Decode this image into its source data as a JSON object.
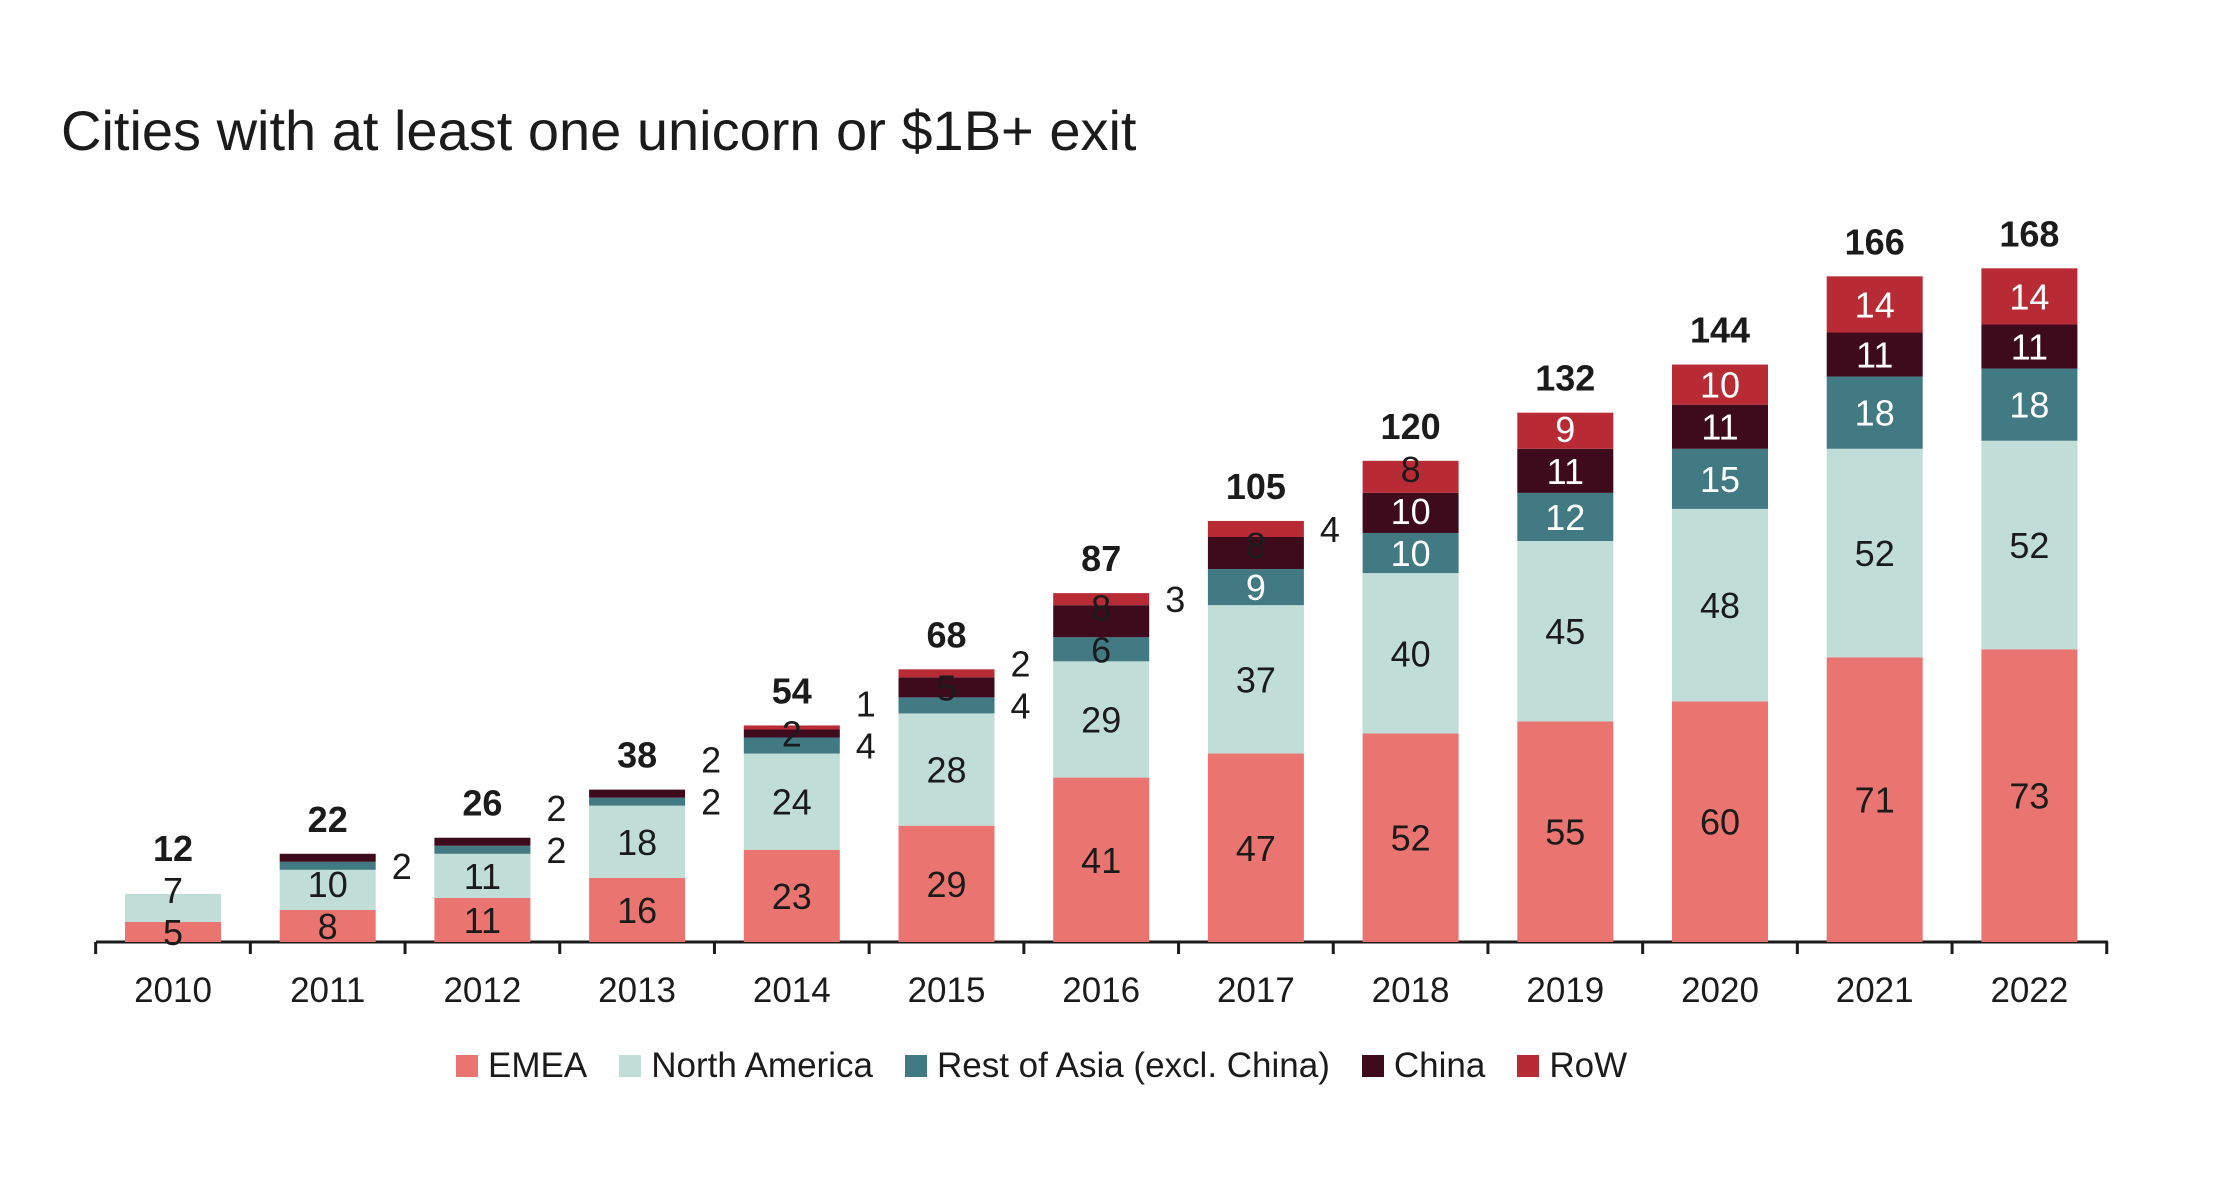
{
  "chart_data": {
    "type": "bar",
    "stacked": true,
    "title": "Cities with at least one unicorn or $1B+ exit",
    "xlabel": "",
    "ylabel": "",
    "ylim": [
      0,
      170
    ],
    "grid": false,
    "legend_position": "bottom",
    "categories": [
      "2010",
      "2011",
      "2012",
      "2013",
      "2014",
      "2015",
      "2016",
      "2017",
      "2018",
      "2019",
      "2020",
      "2021",
      "2022"
    ],
    "totals": [
      12,
      22,
      26,
      38,
      54,
      68,
      87,
      105,
      120,
      132,
      144,
      166,
      168
    ],
    "series": [
      {
        "name": "EMEA",
        "color": "#e97470",
        "label_color": "#1b1b1b",
        "values": [
          5,
          8,
          11,
          16,
          23,
          29,
          41,
          47,
          52,
          55,
          60,
          71,
          73
        ]
      },
      {
        "name": "North America",
        "color": "#c1ddd8",
        "label_color": "#1b1b1b",
        "values": [
          7,
          10,
          11,
          18,
          24,
          28,
          29,
          37,
          40,
          45,
          48,
          52,
          52
        ]
      },
      {
        "name": "Rest of Asia (excl. China)",
        "color": "#427a83",
        "label_color": "#ffffff",
        "values": [
          0,
          2,
          2,
          2,
          4,
          4,
          6,
          9,
          10,
          12,
          15,
          18,
          18
        ]
      },
      {
        "name": "China",
        "color": "#3e0b1c",
        "label_color": "#ffffff",
        "values": [
          0,
          2,
          2,
          2,
          2,
          5,
          8,
          8,
          10,
          11,
          11,
          11,
          11
        ]
      },
      {
        "name": "RoW",
        "color": "#b82b35",
        "label_color": "#ffffff",
        "values": [
          0,
          0,
          0,
          0,
          1,
          2,
          3,
          4,
          8,
          9,
          10,
          14,
          14
        ]
      }
    ],
    "label_placement": [
      [
        "in",
        "in",
        "none",
        "none",
        "none"
      ],
      [
        "in",
        "in",
        "out",
        "none",
        "none"
      ],
      [
        "in",
        "in",
        "out",
        "out",
        "none"
      ],
      [
        "in",
        "in",
        "out",
        "out",
        "none"
      ],
      [
        "in",
        "in",
        "out",
        "in",
        "out"
      ],
      [
        "in",
        "in",
        "out",
        "in",
        "out"
      ],
      [
        "in",
        "in",
        "in",
        "in",
        "out"
      ],
      [
        "in",
        "in",
        "in",
        "in",
        "out"
      ],
      [
        "in",
        "in",
        "in",
        "in",
        "in"
      ],
      [
        "in",
        "in",
        "in",
        "in",
        "in"
      ],
      [
        "in",
        "in",
        "in",
        "in",
        "in"
      ],
      [
        "in",
        "in",
        "in",
        "in",
        "in"
      ],
      [
        "in",
        "in",
        "in",
        "in",
        "in"
      ]
    ]
  }
}
